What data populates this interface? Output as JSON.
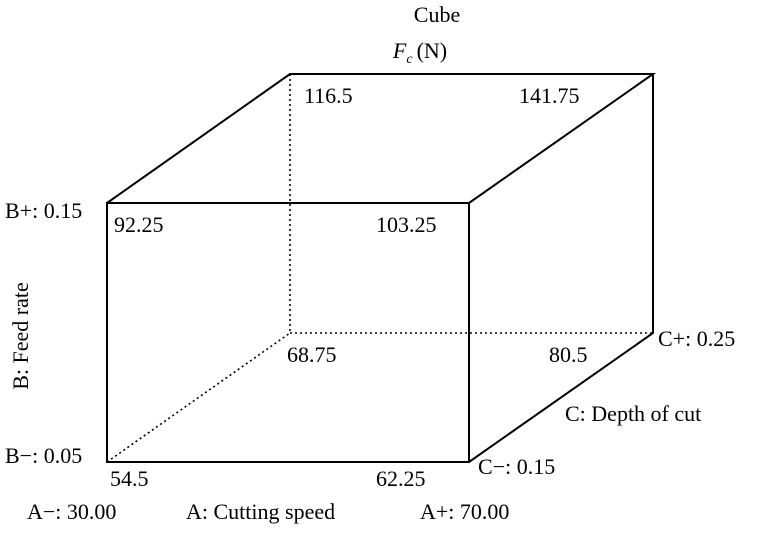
{
  "title": "Cube",
  "response": {
    "symbol": "F",
    "subscript": "c",
    "unit": "(N)"
  },
  "factors": {
    "A": {
      "label": "A: Cutting speed",
      "low": "A−: 30.00",
      "high": "A+: 70.00"
    },
    "B": {
      "label": "B: Feed rate",
      "low": "B−: 0.05",
      "high": "B+: 0.15"
    },
    "C": {
      "label": "C: Depth of cut",
      "low": "C−: 0.15",
      "high": "C+: 0.25"
    }
  },
  "corners": {
    "front_bottom_left": "54.5",
    "front_bottom_right": "62.25",
    "front_top_left": "92.25",
    "front_top_right": "103.25",
    "back_bottom_left": "68.75",
    "back_bottom_right": "80.5",
    "back_top_left": "116.5",
    "back_top_right": "141.75"
  },
  "colors": {
    "line": "#000000",
    "text": "#000000",
    "background": "#ffffff"
  }
}
